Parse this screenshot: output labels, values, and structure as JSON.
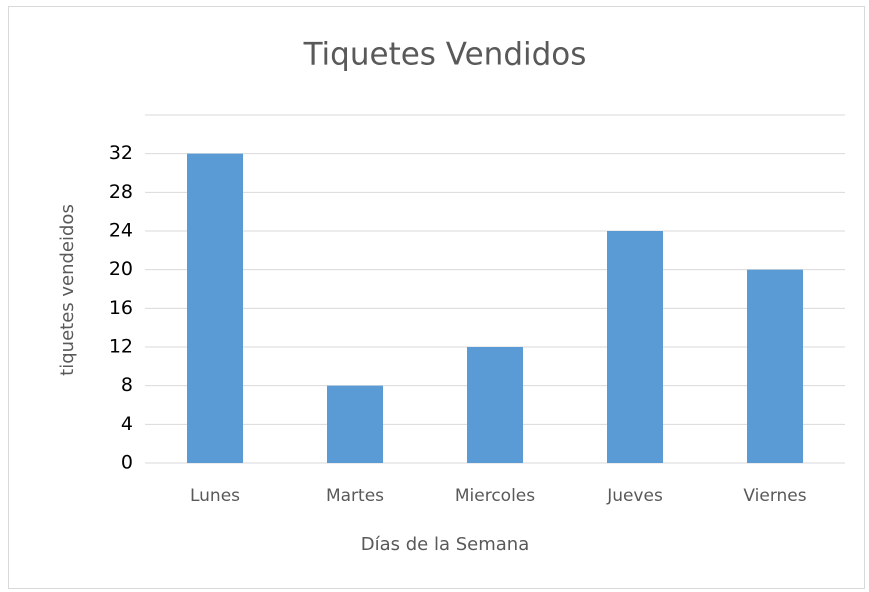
{
  "chart_data": {
    "type": "bar",
    "title": "Tiquetes Vendidos",
    "x_label": "Días de la Semana",
    "y_label": "tiquetes vendeidos",
    "categories": [
      "Lunes",
      "Martes",
      "Miercoles",
      "Jueves",
      "Viernes"
    ],
    "values": [
      32,
      8,
      12,
      24,
      20
    ],
    "color": "#5b9bd5",
    "ylim": [
      0,
      36
    ],
    "yticks": [
      0,
      4,
      8,
      12,
      16,
      20,
      24,
      28,
      32
    ],
    "grid": true
  }
}
